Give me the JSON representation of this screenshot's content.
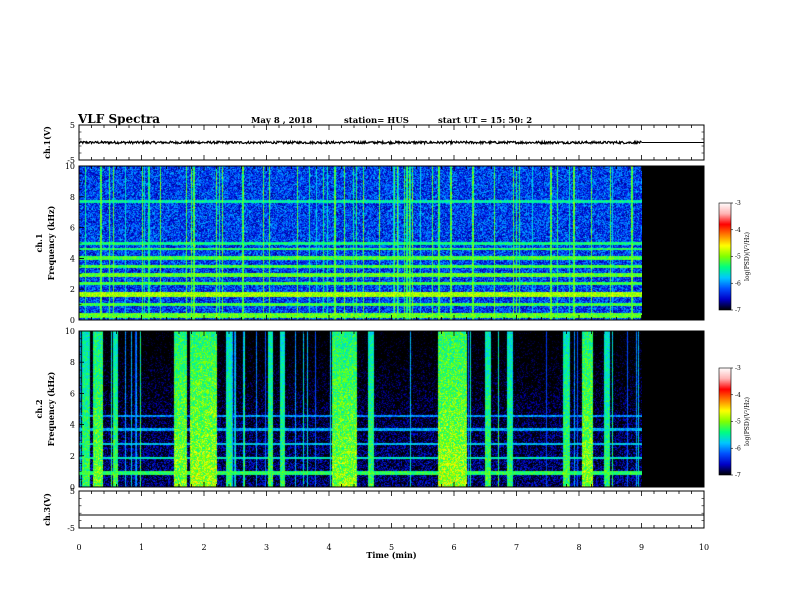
{
  "header": {
    "title": "VLF Spectra",
    "date": "May 8 , 2018",
    "station": "station= HUS",
    "start": "start UT = 15: 50: 2"
  },
  "colors": {
    "background": "#ffffff",
    "no_data": "#000000",
    "colormap": [
      "#000000",
      "#0000c8",
      "#0050ff",
      "#00c8ff",
      "#00ff80",
      "#80ff00",
      "#ffff00",
      "#ff8000",
      "#ff0000",
      "#ffb4b4",
      "#ffffff"
    ]
  },
  "chart_data": [
    {
      "type": "line",
      "name": "ch.1",
      "ylabel": "ch.1(V)",
      "ylim": [
        -5,
        5
      ],
      "yticks": [
        "5",
        "-5"
      ],
      "xlim": [
        0,
        10
      ],
      "data_end_min": 9.0,
      "level_v": 0.0,
      "noise_v": 0.35
    },
    {
      "type": "heatmap",
      "name": "ch.1",
      "ylabel": "ch.1 Frequency (kHz)",
      "ylim": [
        0,
        10
      ],
      "yticks": [
        "0",
        "2",
        "4",
        "6",
        "8",
        "10"
      ],
      "xlim": [
        0,
        10
      ],
      "data_end_min": 9.0,
      "background_log_psd": -6.3,
      "bands_khz": [
        {
          "f0": 0.15,
          "f1": 0.45,
          "level": -5.1
        },
        {
          "f0": 0.9,
          "f1": 1.1,
          "level": -5.2
        },
        {
          "f0": 1.5,
          "f1": 1.8,
          "level": -4.9
        },
        {
          "f0": 2.3,
          "f1": 2.45,
          "level": -5.2
        },
        {
          "f0": 2.8,
          "f1": 3.05,
          "level": -5.1
        },
        {
          "f0": 3.4,
          "f1": 3.6,
          "level": -5.2
        },
        {
          "f0": 3.9,
          "f1": 4.15,
          "level": -5.2
        },
        {
          "f0": 4.55,
          "f1": 4.7,
          "level": -5.3
        },
        {
          "f0": 4.9,
          "f1": 5.05,
          "level": -5.4
        },
        {
          "f0": 7.6,
          "f1": 7.8,
          "level": -5.5
        }
      ],
      "vertical_streaks_min": [
        0.35,
        0.55,
        1.02,
        1.3,
        1.72,
        1.85,
        2.3,
        2.62,
        2.95,
        3.05,
        3.5,
        4.1,
        4.25,
        4.55,
        5.1,
        5.75,
        5.95,
        6.3,
        6.65,
        6.95,
        7.55,
        7.92,
        8.2,
        8.5,
        8.85
      ]
    },
    {
      "type": "heatmap",
      "name": "ch.2",
      "ylabel": "ch.2 Frequency (kHz)",
      "ylim": [
        0,
        10
      ],
      "yticks": [
        "0",
        "2",
        "4",
        "6",
        "8",
        "10"
      ],
      "xlim": [
        0,
        10
      ],
      "data_end_min": 9.0,
      "background_log_psd": -6.6,
      "bands_khz": [
        {
          "f0": 0.8,
          "f1": 1.0,
          "level": -5.3
        },
        {
          "f0": 1.8,
          "f1": 1.95,
          "level": -5.6
        },
        {
          "f0": 2.7,
          "f1": 2.85,
          "level": -5.8
        },
        {
          "f0": 3.6,
          "f1": 3.75,
          "level": -5.9
        },
        {
          "f0": 4.5,
          "f1": 4.62,
          "level": -6.0
        }
      ],
      "bursts_min": [
        {
          "t0": 0.05,
          "t1": 0.18,
          "level": -5.0
        },
        {
          "t0": 0.22,
          "t1": 0.38,
          "level": -4.8
        },
        {
          "t0": 0.55,
          "t1": 0.62,
          "level": -5.0
        },
        {
          "t0": 1.52,
          "t1": 1.72,
          "level": -4.7
        },
        {
          "t0": 1.78,
          "t1": 2.2,
          "level": -4.6
        },
        {
          "t0": 2.35,
          "t1": 2.45,
          "level": -5.1
        },
        {
          "t0": 3.02,
          "t1": 3.1,
          "level": -5.0
        },
        {
          "t0": 3.22,
          "t1": 3.3,
          "level": -5.1
        },
        {
          "t0": 4.05,
          "t1": 4.45,
          "level": -4.7
        },
        {
          "t0": 4.62,
          "t1": 4.72,
          "level": -5.0
        },
        {
          "t0": 5.75,
          "t1": 6.2,
          "level": -4.6
        },
        {
          "t0": 6.5,
          "t1": 6.6,
          "level": -5.0
        },
        {
          "t0": 6.85,
          "t1": 6.92,
          "level": -5.1
        },
        {
          "t0": 7.75,
          "t1": 7.85,
          "level": -5.0
        },
        {
          "t0": 8.05,
          "t1": 8.22,
          "level": -4.7
        },
        {
          "t0": 8.4,
          "t1": 8.5,
          "level": -5.1
        }
      ]
    },
    {
      "type": "line",
      "name": "ch.3",
      "ylabel": "ch.3(V)",
      "ylim": [
        -5,
        5
      ],
      "yticks": [
        "5",
        "-5"
      ],
      "xlim": [
        0,
        10
      ],
      "level_v": -1.5,
      "noise_v": 0.0
    }
  ],
  "colorbar": {
    "label": "log(PSD)(V²/Hz)",
    "ticks": [
      "-3",
      "-4",
      "-5",
      "-6",
      "-7"
    ],
    "range": [
      -7,
      -3
    ]
  },
  "xaxis": {
    "label": "Time (min)",
    "ticks": [
      "0",
      "1",
      "2",
      "3",
      "4",
      "5",
      "6",
      "7",
      "8",
      "9",
      "10"
    ]
  }
}
